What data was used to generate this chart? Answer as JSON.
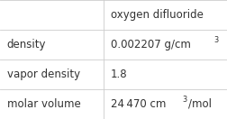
{
  "title": "oxygen difluoride",
  "rows": [
    {
      "label": "density",
      "value_parts": [
        {
          "text": "0.002207 g/cm",
          "super": "3",
          "rest": ""
        }
      ]
    },
    {
      "label": "vapor density",
      "value_parts": [
        {
          "text": "1.8",
          "super": "",
          "rest": ""
        }
      ]
    },
    {
      "label": "molar volume",
      "value_parts": [
        {
          "text": "24 470 cm",
          "super": "3",
          "rest": "/mol"
        }
      ]
    }
  ],
  "background_color": "#ffffff",
  "border_color": "#cccccc",
  "text_color": "#333333",
  "font_size": 8.5,
  "title_font_size": 8.5,
  "col_split": 0.455,
  "n_rows": 4
}
